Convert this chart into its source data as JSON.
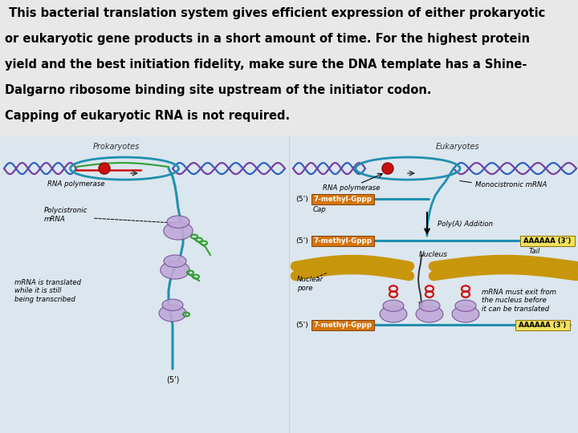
{
  "background_color": "#e8e8e8",
  "text_bg_color": "#f5f5f5",
  "title_lines": [
    " This bacterial translation system gives efficient expression of either prokaryotic",
    "or eukaryotic gene products in a short amount of time. For the highest protein",
    "yield and the best initiation fidelity, make sure the DNA template has a Shine-",
    "Dalgarno ribosome binding site upstream of the initiator codon.",
    "Capping of eukaryotic RNA is not required."
  ],
  "title_fontsize": 10.5,
  "fig_width": 7.2,
  "fig_height": 5.4,
  "dpi": 100,
  "diagram_bg": "#e0e8ee",
  "prokaryotes_label": "Prokaryotes",
  "eukaryotes_label": "Eukaryotes",
  "orange_color": "#d4740a",
  "yellow_color": "#f0e060",
  "teal_color": "#2090b0",
  "purple_color": "#9878b8",
  "purple_light": "#c0a8d8",
  "red_color": "#cc1010",
  "green_color": "#30a030",
  "gold_color": "#c8960a",
  "dna_blue": "#3060c0",
  "dna_purple": "#7840a0",
  "rna_teal": "#1888a8"
}
